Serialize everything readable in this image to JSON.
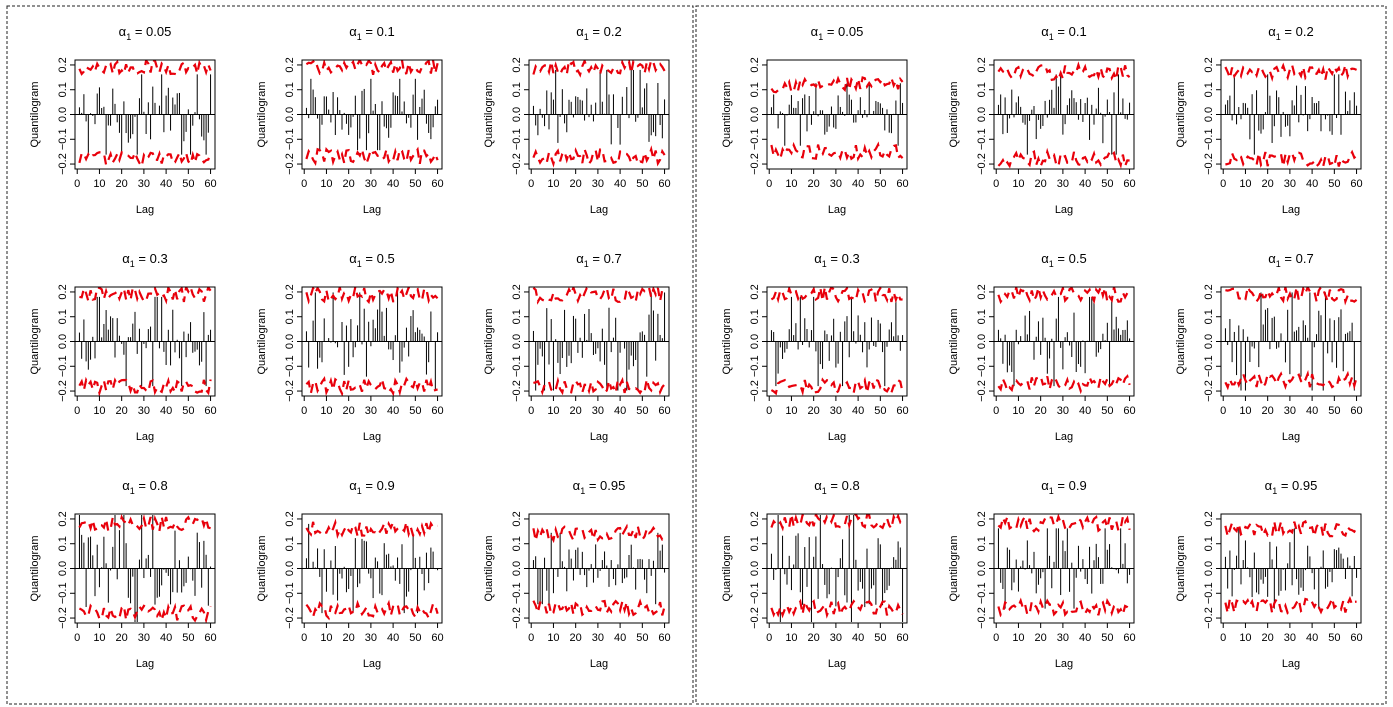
{
  "chart_data": {
    "type": "bar",
    "panel_layout": "two blocks of 3x3 small-multiple bar plots, dashed frame around each block",
    "xlabel": "Lag",
    "ylabel": "Quantilogram",
    "xlim": [
      -1,
      62
    ],
    "ylim": [
      -0.22,
      0.22
    ],
    "x_ticks": [
      0,
      10,
      20,
      30,
      40,
      50,
      60
    ],
    "y_ticks": [
      -0.2,
      -0.1,
      0.0,
      0.1,
      0.2
    ],
    "y_tick_labels": [
      "−0.2",
      "−0.1",
      "0.0",
      "0.1",
      "0.2"
    ],
    "title_symbol": "α",
    "title_subscript": "1",
    "lags": [
      1,
      60
    ],
    "band_style": "red dashed, upper and lower",
    "colors": {
      "bars": "#000000",
      "bands": "#e8000b"
    },
    "blocks": [
      {
        "panels": [
          {
            "alpha": "0.05",
            "approx_abs": 0.09,
            "upper_band": 0.19,
            "lower_band": -0.18
          },
          {
            "alpha": "0.1",
            "approx_abs": 0.08,
            "upper_band": 0.19,
            "lower_band": -0.17
          },
          {
            "alpha": "0.2",
            "approx_abs": 0.1,
            "upper_band": 0.19,
            "lower_band": -0.17
          },
          {
            "alpha": "0.3",
            "approx_abs": 0.1,
            "upper_band": 0.19,
            "lower_band": -0.18
          },
          {
            "alpha": "0.5",
            "approx_abs": 0.11,
            "upper_band": 0.19,
            "lower_band": -0.18
          },
          {
            "alpha": "0.7",
            "approx_abs": 0.11,
            "upper_band": 0.19,
            "lower_band": -0.18
          },
          {
            "alpha": "0.8",
            "approx_abs": 0.12,
            "upper_band": 0.18,
            "lower_band": -0.18
          },
          {
            "alpha": "0.9",
            "approx_abs": 0.1,
            "upper_band": 0.16,
            "lower_band": -0.17
          },
          {
            "alpha": "0.95",
            "approx_abs": 0.08,
            "upper_band": 0.14,
            "lower_band": -0.16
          }
        ]
      },
      {
        "panels": [
          {
            "alpha": "0.05",
            "approx_abs": 0.07,
            "upper_band": 0.12,
            "lower_band": -0.15
          },
          {
            "alpha": "0.1",
            "approx_abs": 0.09,
            "upper_band": 0.17,
            "lower_band": -0.18
          },
          {
            "alpha": "0.2",
            "approx_abs": 0.09,
            "upper_band": 0.17,
            "lower_band": -0.18
          },
          {
            "alpha": "0.3",
            "approx_abs": 0.1,
            "upper_band": 0.19,
            "lower_band": -0.18
          },
          {
            "alpha": "0.5",
            "approx_abs": 0.1,
            "upper_band": 0.19,
            "lower_band": -0.17
          },
          {
            "alpha": "0.7",
            "approx_abs": 0.11,
            "upper_band": 0.19,
            "lower_band": -0.16
          },
          {
            "alpha": "0.8",
            "approx_abs": 0.12,
            "upper_band": 0.19,
            "lower_band": -0.16
          },
          {
            "alpha": "0.9",
            "approx_abs": 0.09,
            "upper_band": 0.18,
            "lower_band": -0.16
          },
          {
            "alpha": "0.95",
            "approx_abs": 0.09,
            "upper_band": 0.16,
            "lower_band": -0.15
          }
        ]
      }
    ]
  }
}
